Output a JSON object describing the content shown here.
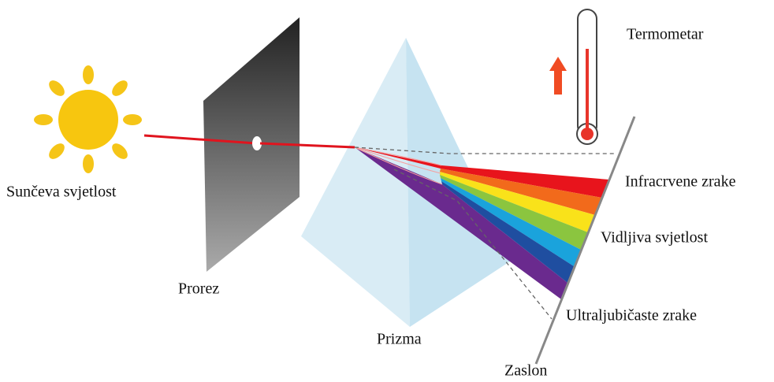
{
  "labels": {
    "sun": "Sunčeva svjetlost",
    "slit": "Prorez",
    "prism": "Prizma",
    "thermometer": "Termometar",
    "infrared": "Infracrvene zrake",
    "visible": "Vidljiva svjetlost",
    "ultraviolet": "Ultraljubičaste zrake",
    "screen": "Zaslon"
  }
}
